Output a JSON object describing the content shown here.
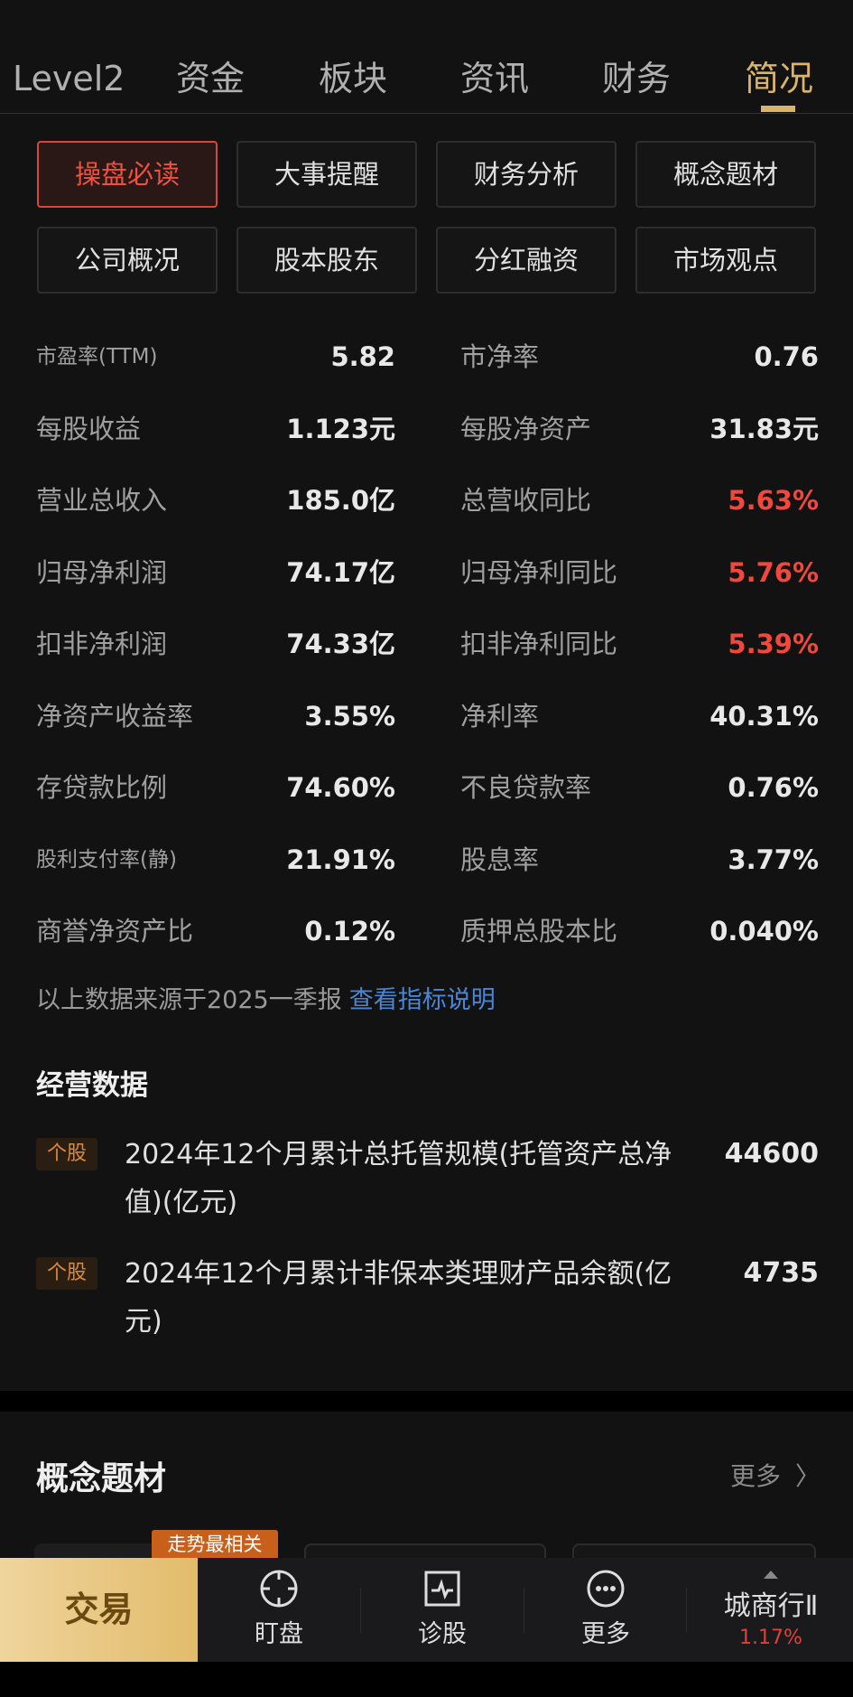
{
  "tabs": [
    "Level2",
    "资金",
    "板块",
    "资讯",
    "财务",
    "简况"
  ],
  "active_tab": "简况",
  "buttons": [
    "操盘必读",
    "大事提醒",
    "财务分析",
    "概念题材",
    "公司概况",
    "股本股东",
    "分红融资",
    "市场观点"
  ],
  "metrics": [
    {
      "l": "市盈率(TTM)",
      "lv": "5.82",
      "r": "市净率",
      "rv": "0.76",
      "rred": false
    },
    {
      "l": "每股收益",
      "lv": "1.123元",
      "r": "每股净资产",
      "rv": "31.83元",
      "rred": false
    },
    {
      "l": "营业总收入",
      "lv": "185.0亿",
      "r": "总营收同比",
      "rv": "5.63%",
      "rred": true
    },
    {
      "l": "归母净利润",
      "lv": "74.17亿",
      "r": "归母净利同比",
      "rv": "5.76%",
      "rred": true
    },
    {
      "l": "扣非净利润",
      "lv": "74.33亿",
      "r": "扣非净利同比",
      "rv": "5.39%",
      "rred": true
    },
    {
      "l": "净资产收益率",
      "lv": "3.55%",
      "r": "净利率",
      "rv": "40.31%",
      "rred": false
    },
    {
      "l": "存贷款比例",
      "lv": "74.60%",
      "r": "不良贷款率",
      "rv": "0.76%",
      "rred": false
    },
    {
      "l": "股利支付率(静)",
      "lv": "21.91%",
      "r": "股息率",
      "rv": "3.77%",
      "rred": false
    },
    {
      "l": "商誉净资产比",
      "lv": "0.12%",
      "r": "质押总股本比",
      "rv": "0.040%",
      "rred": false
    }
  ],
  "note": {
    "text": "以上数据来源于2025一季报",
    "link": "查看指标说明"
  },
  "operating": {
    "title": "经营数据",
    "items": [
      {
        "tag": "个股",
        "text": "2024年12个月累计总托管规模(托管资产总净值)(亿元)",
        "value": "44600"
      },
      {
        "tag": "个股",
        "text": "2024年12个月累计非保本类理财产品余额(亿元)",
        "value": "4735"
      }
    ]
  },
  "concept": {
    "title": "概念题材",
    "more": "更多",
    "more_icon": "chevron-right-icon",
    "hot_tag": "走势最相关"
  },
  "bottom_bar": {
    "trade": "交易",
    "items": [
      {
        "label": "盯盘",
        "icon": "crosshair-icon"
      },
      {
        "label": "诊股",
        "icon": "pulse-chart-icon"
      },
      {
        "label": "更多",
        "icon": "more-dots-icon"
      }
    ],
    "sector": {
      "name": "城商行Ⅱ",
      "change": "1.17%",
      "direction": "up"
    }
  },
  "colors": {
    "accent": "#d9b46a",
    "red": "#f2473c",
    "link": "#4a86d4"
  }
}
